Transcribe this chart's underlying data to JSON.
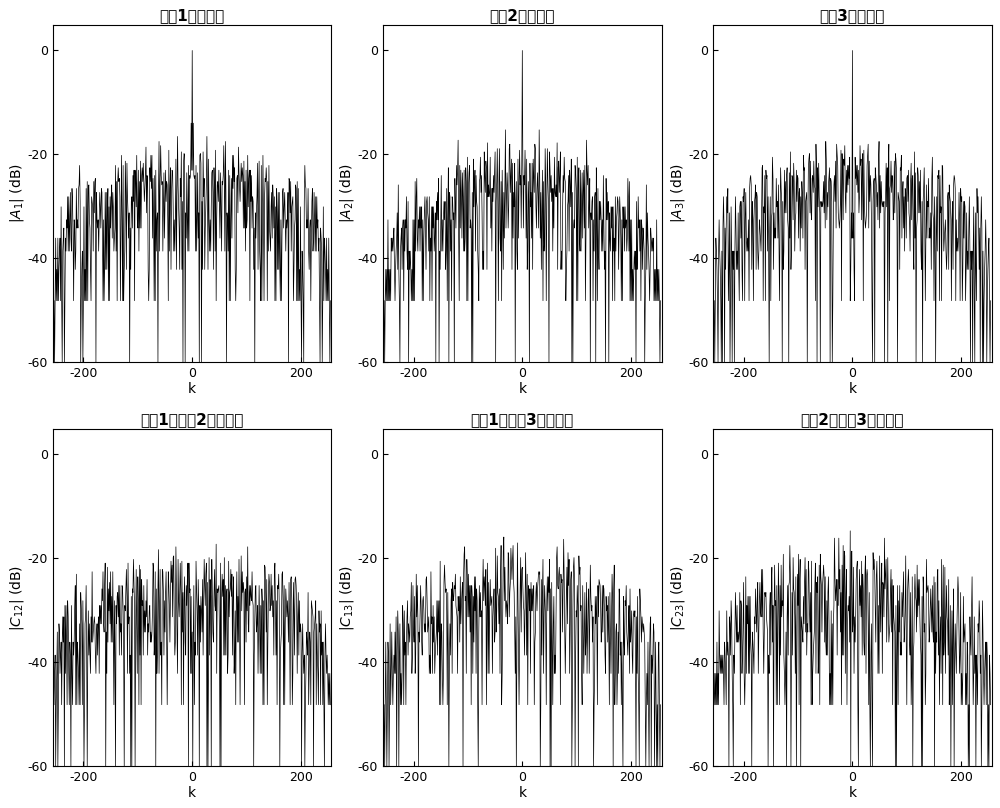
{
  "titles_row1": [
    "波兲1的自相关",
    "波兲2的自相关",
    "波兲3的自相关"
  ],
  "titles_row2": [
    "波兲1和波兲2的互相关",
    "波兲1和波兲3的互相关",
    "波兲2和波兲3的互相关"
  ],
  "xlabel": "k",
  "xlim": [
    -256,
    256
  ],
  "ylim": [
    -60,
    5
  ],
  "yticks": [
    0,
    -20,
    -40,
    -60
  ],
  "xticks": [
    -200,
    0,
    200
  ],
  "N": 255,
  "seed": 42,
  "figsize": [
    10.0,
    8.08
  ],
  "dpi": 100,
  "background_color": "#ffffff",
  "line_color": "#000000",
  "linewidth": 0.5,
  "title_fontsize": 11,
  "label_fontsize": 10,
  "tick_fontsize": 9
}
